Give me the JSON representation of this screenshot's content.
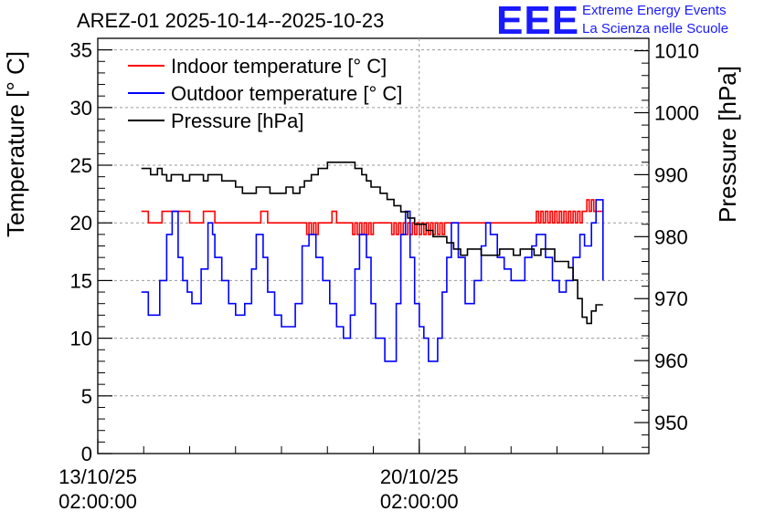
{
  "header": {
    "title": "AREZ-01 2025-10-14--2025-10-23",
    "logo_text": "EEE",
    "org_line1": "Extreme Energy Events",
    "org_line2": "La Scienza nelle Scuole"
  },
  "colors": {
    "indoor": "#ff0000",
    "outdoor": "#0000ff",
    "pressure": "#000000",
    "brand": "#1a1aff",
    "grid": "#9a9a9a"
  },
  "chart_data": {
    "type": "line",
    "title": "AREZ-01 2025-10-14--2025-10-23",
    "xlabel": "",
    "ylabel": "Temperature [° C]",
    "y2label": "Pressure [hPa]",
    "x_unit": "days since 13/10/25 02:00:00",
    "xlim": [
      0,
      12
    ],
    "ylim": [
      0,
      36
    ],
    "y2lim": [
      945,
      1012
    ],
    "yticks": [
      0,
      5,
      10,
      15,
      20,
      25,
      30,
      35
    ],
    "y2ticks": [
      950,
      960,
      970,
      980,
      990,
      1000,
      1010
    ],
    "xticks": [
      {
        "x": 0,
        "label_date": "13/10/25",
        "label_time": "02:00:00"
      },
      {
        "x": 7,
        "label_date": "20/10/25",
        "label_time": "02:00:00"
      }
    ],
    "legend": {
      "placement": "top-left",
      "entries": [
        "Indoor temperature [° C]",
        "Outdoor temperature [° C]",
        "Pressure [hPa]"
      ]
    },
    "grid": true,
    "series": [
      {
        "name": "Indoor temperature [° C]",
        "axis": "left",
        "x": [
          0.95,
          1.05,
          1.1,
          1.35,
          1.4,
          1.95,
          2.0,
          2.2,
          2.3,
          2.5,
          2.55,
          3.5,
          3.55,
          3.65,
          3.7,
          4.5,
          4.55,
          4.6,
          4.65,
          4.7,
          4.75,
          4.8,
          5.05,
          5.1,
          5.15,
          5.2,
          5.5,
          5.55,
          5.6,
          5.65,
          5.7,
          5.75,
          5.8,
          5.85,
          5.9,
          5.95,
          6.0,
          6.35,
          6.4,
          6.45,
          6.5,
          6.55,
          6.6,
          6.65,
          6.7,
          6.75,
          6.8,
          6.85,
          6.9,
          6.95,
          7.0,
          7.05,
          7.1,
          7.15,
          7.2,
          7.25,
          7.3,
          7.35,
          7.4,
          7.45,
          7.5,
          7.55,
          7.6,
          9.5,
          9.55,
          9.6,
          9.65,
          9.7,
          9.75,
          9.8,
          9.85,
          9.9,
          9.95,
          10.0,
          10.05,
          10.1,
          10.15,
          10.2,
          10.25,
          10.3,
          10.35,
          10.4,
          10.45,
          10.5,
          10.55,
          10.6,
          10.65,
          10.7,
          10.75,
          10.8,
          11.0
        ],
        "values": [
          21,
          21,
          20,
          20,
          21,
          21,
          20,
          20,
          21,
          21,
          20,
          20,
          21,
          21,
          20,
          20,
          19,
          20,
          19,
          20,
          19,
          20,
          20,
          21,
          21,
          20,
          20,
          19,
          20,
          19,
          20,
          19,
          20,
          19,
          20,
          19,
          20,
          20,
          19,
          20,
          19,
          20,
          19,
          20,
          19,
          20,
          19,
          20,
          19,
          20,
          19,
          20,
          19,
          20,
          19,
          20,
          19,
          20,
          19,
          20,
          19,
          20,
          20,
          20,
          21,
          20,
          21,
          20,
          21,
          20,
          21,
          20,
          21,
          20,
          21,
          20,
          21,
          20,
          21,
          20,
          21,
          20,
          21,
          20,
          21,
          21,
          22,
          21,
          22,
          21,
          21
        ]
      },
      {
        "name": "Outdoor temperature [° C]",
        "axis": "left",
        "x": [
          0.95,
          1.1,
          1.2,
          1.35,
          1.5,
          1.62,
          1.75,
          1.85,
          1.95,
          2.05,
          2.1,
          2.25,
          2.4,
          2.5,
          2.55,
          2.7,
          2.85,
          3.0,
          3.1,
          3.2,
          3.35,
          3.45,
          3.6,
          3.7,
          3.85,
          4.0,
          4.15,
          4.3,
          4.45,
          4.6,
          4.75,
          4.9,
          5.05,
          5.2,
          5.35,
          5.5,
          5.6,
          5.7,
          5.85,
          5.95,
          6.05,
          6.25,
          6.35,
          6.5,
          6.6,
          6.7,
          6.8,
          6.9,
          7.0,
          7.1,
          7.2,
          7.3,
          7.4,
          7.5,
          7.6,
          7.7,
          7.85,
          8.0,
          8.1,
          8.2,
          8.35,
          8.45,
          8.55,
          8.7,
          8.85,
          9.0,
          9.15,
          9.3,
          9.45,
          9.55,
          9.65,
          9.75,
          9.9,
          10.05,
          10.2,
          10.35,
          10.5,
          10.6,
          10.75,
          10.85,
          11.0
        ],
        "values": [
          14,
          12,
          12,
          15,
          19,
          21,
          17,
          15,
          14,
          13,
          13,
          16,
          20,
          19,
          17,
          15,
          13,
          12,
          12,
          13,
          16,
          19,
          17,
          14,
          12,
          11,
          11,
          13,
          18,
          19,
          17,
          15,
          13,
          11,
          10,
          12,
          16,
          19,
          17,
          13,
          10,
          8,
          8,
          13,
          19,
          21,
          17,
          13,
          11,
          10,
          8,
          8,
          10,
          14,
          17,
          20,
          17,
          13,
          13,
          15,
          18,
          20,
          19,
          17,
          16,
          15,
          15,
          17,
          18,
          19,
          19,
          17,
          15,
          14,
          15,
          17,
          19,
          18,
          20,
          22,
          15
        ]
      },
      {
        "name": "Pressure [hPa]",
        "axis": "right",
        "x": [
          0.95,
          1.1,
          1.15,
          1.3,
          1.4,
          1.5,
          1.6,
          1.7,
          1.85,
          2.0,
          2.2,
          2.3,
          2.4,
          2.55,
          2.7,
          2.85,
          3.0,
          3.15,
          3.3,
          3.45,
          3.6,
          3.75,
          4.0,
          4.1,
          4.25,
          4.4,
          4.5,
          4.65,
          4.8,
          5.0,
          5.2,
          5.4,
          5.6,
          5.75,
          5.85,
          5.95,
          6.05,
          6.15,
          6.3,
          6.45,
          6.6,
          6.75,
          6.9,
          7.05,
          7.15,
          7.3,
          7.45,
          7.6,
          7.75,
          7.9,
          8.05,
          8.2,
          8.35,
          8.5,
          8.6,
          8.75,
          8.9,
          9.05,
          9.2,
          9.35,
          9.5,
          9.65,
          9.8,
          9.95,
          10.1,
          10.25,
          10.35,
          10.45,
          10.55,
          10.65,
          10.75,
          10.85,
          11.0
        ],
        "values": [
          991,
          991,
          990,
          991,
          990,
          989,
          990,
          990,
          989,
          990,
          990,
          989,
          990,
          990,
          989,
          989,
          988,
          987,
          987,
          988,
          988,
          987,
          987,
          988,
          987,
          988,
          989,
          990,
          991,
          992,
          992,
          992,
          991,
          990,
          989,
          988,
          988,
          987,
          986,
          985,
          984,
          983,
          982,
          982,
          981,
          980,
          980,
          979,
          978,
          977,
          978,
          978,
          977,
          977,
          977,
          978,
          978,
          977,
          978,
          978,
          977,
          978,
          978,
          976,
          976,
          975,
          973,
          970,
          967,
          966,
          968,
          969,
          969
        ]
      }
    ]
  }
}
